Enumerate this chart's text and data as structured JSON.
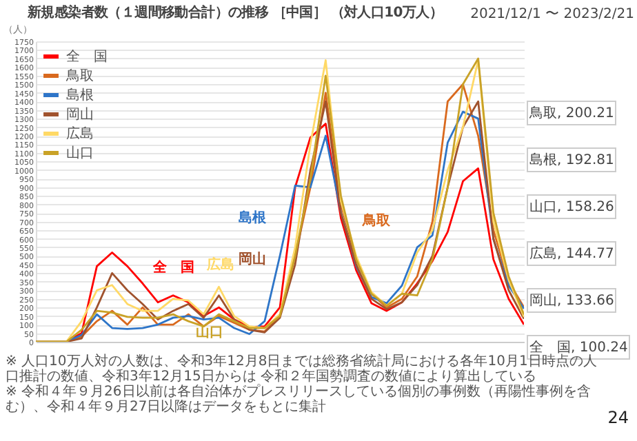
{
  "chart_data": {
    "type": "line",
    "title": "新規感染者数（１週間移動合計）の推移 ［中国］ （対人口10万人）",
    "subtitle": "2021/12/1 〜 2023/2/21",
    "ylabel": "（人）",
    "categories": [
      null,
      null,
      null,
      null,
      null,
      null,
      null,
      null,
      null,
      null,
      null,
      null,
      null,
      null,
      null,
      null,
      null,
      null,
      null,
      null,
      null,
      null,
      null,
      null,
      null,
      null,
      null,
      null,
      null,
      null,
      null,
      null,
      null
    ],
    "ylim": [
      0,
      1750
    ],
    "yticks": [
      0,
      50,
      100,
      150,
      200,
      250,
      300,
      350,
      400,
      450,
      500,
      550,
      600,
      650,
      700,
      750,
      800,
      850,
      900,
      950,
      1000,
      1050,
      1100,
      1150,
      1200,
      1250,
      1300,
      1350,
      1400,
      1450,
      1500,
      1550,
      1600,
      1650,
      1700,
      1750
    ],
    "tick_labels": "y",
    "grid": "y",
    "legend": "top left",
    "line_style": "solid",
    "marker": "none",
    "series": [
      {
        "name": "全　国",
        "color": "#ff0000",
        "values": [
          0,
          0,
          0,
          50,
          440,
          520,
          440,
          340,
          230,
          270,
          230,
          150,
          200,
          130,
          85,
          90,
          200,
          900,
          1190,
          1270,
          720,
          417,
          225,
          180,
          230,
          340,
          470,
          640,
          935,
          1010,
          480,
          250,
          100.24
        ]
      },
      {
        "name": "鳥取",
        "color": "#d9691e",
        "values": [
          0,
          0,
          0,
          30,
          120,
          180,
          100,
          200,
          100,
          100,
          160,
          90,
          150,
          110,
          70,
          60,
          150,
          500,
          900,
          1450,
          800,
          480,
          280,
          200,
          250,
          380,
          700,
          1400,
          1500,
          1200,
          650,
          350,
          200.21
        ]
      },
      {
        "name": "島根",
        "color": "#2e75c8",
        "values": [
          0,
          0,
          0,
          40,
          160,
          80,
          75,
          80,
          100,
          140,
          150,
          130,
          140,
          80,
          45,
          120,
          500,
          910,
          900,
          1200,
          754,
          440,
          260,
          225,
          327,
          550,
          620,
          1160,
          1340,
          1300,
          597,
          327,
          192.81
        ]
      },
      {
        "name": "岡山",
        "color": "#a0522d",
        "values": [
          0,
          0,
          0,
          20,
          200,
          400,
          300,
          220,
          130,
          180,
          220,
          140,
          270,
          130,
          70,
          55,
          140,
          450,
          1000,
          1400,
          750,
          450,
          250,
          190,
          230,
          330,
          500,
          900,
          1250,
          1400,
          600,
          300,
          133.66
        ]
      },
      {
        "name": "広島",
        "color": "#ffd966",
        "values": [
          0,
          0,
          0,
          120,
          300,
          330,
          220,
          180,
          180,
          250,
          240,
          160,
          320,
          150,
          90,
          80,
          160,
          550,
          1150,
          1640,
          820,
          500,
          290,
          210,
          280,
          520,
          650,
          1000,
          1250,
          1640,
          700,
          360,
          144.77
        ]
      },
      {
        "name": "山口",
        "color": "#c9a227",
        "values": [
          0,
          0,
          0,
          70,
          180,
          170,
          145,
          140,
          140,
          160,
          120,
          90,
          160,
          120,
          80,
          80,
          150,
          500,
          950,
          1550,
          850,
          480,
          280,
          210,
          280,
          270,
          480,
          900,
          1500,
          1650,
          750,
          380,
          158.26
        ]
      }
    ],
    "annotations": [
      "鳥取, 200.21",
      "島根, 192.81",
      "山口, 158.26",
      "広島, 144.77",
      "岡山, 133.66",
      "全　国, 100.24",
      "※ 人口10万人対の人数は、令和3年12月8日までは総務省統計局における各年10月1日時点の人口推計の数値、令和3年12月15日からは 令和２年国勢調査の数値により算出している",
      "※ 令和４年９月26日以前は各自治体がプレスリリースしている個別の事例数（再陽性事例を含む）、令和４年９月27日以降はデータをもとに集計",
      "24"
    ]
  }
}
